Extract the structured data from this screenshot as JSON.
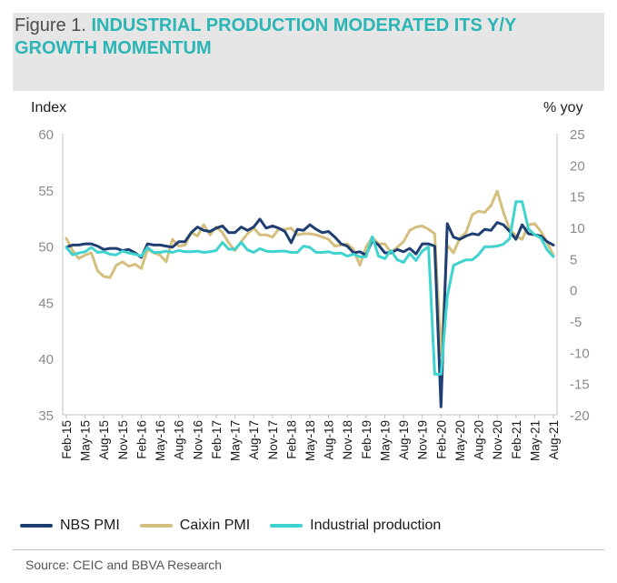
{
  "header": {
    "figure_label": "Figure 1. ",
    "title": "INDUSTRIAL PRODUCTION MODERATED ITS Y/Y GROWTH MOMENTUM"
  },
  "colors": {
    "header_bg": "#e6e6e6",
    "title_accent": "#2bb5b5",
    "nbs": "#1f3f73",
    "caixin": "#d4bf7f",
    "ip": "#3fd3cf"
  },
  "legend": {
    "nbs": "NBS PMI",
    "caixin": "Caixin PMI",
    "ip": "Industrial production"
  },
  "source": "Source: CEIC and BBVA Research",
  "chart_data": {
    "type": "line",
    "left_axis_title": "Index",
    "right_axis_title": "% yoy",
    "left_ylim": [
      35,
      60
    ],
    "left_ticks": [
      35,
      40,
      45,
      50,
      55,
      60
    ],
    "right_ylim": [
      -20,
      25
    ],
    "right_ticks": [
      -20,
      -15,
      -10,
      -5,
      0,
      5,
      10,
      15,
      20,
      25
    ],
    "x_tick_labels": [
      "Feb-15",
      "May-15",
      "Aug-15",
      "Nov-15",
      "Feb-16",
      "May-16",
      "Aug-16",
      "Nov-16",
      "Feb-17",
      "May-17",
      "Aug-17",
      "Nov-17",
      "Feb-18",
      "May-18",
      "Aug-18",
      "Nov-18",
      "Feb-19",
      "May-19",
      "Aug-19",
      "Nov-19",
      "Feb-20",
      "May-20",
      "Aug-20",
      "Nov-20",
      "Feb-21",
      "May-21",
      "Aug-21"
    ],
    "months": [
      "Feb-15",
      "Mar-15",
      "Apr-15",
      "May-15",
      "Jun-15",
      "Jul-15",
      "Aug-15",
      "Sep-15",
      "Oct-15",
      "Nov-15",
      "Dec-15",
      "Jan-16",
      "Feb-16",
      "Mar-16",
      "Apr-16",
      "May-16",
      "Jun-16",
      "Jul-16",
      "Aug-16",
      "Sep-16",
      "Oct-16",
      "Nov-16",
      "Dec-16",
      "Jan-17",
      "Feb-17",
      "Mar-17",
      "Apr-17",
      "May-17",
      "Jun-17",
      "Jul-17",
      "Aug-17",
      "Sep-17",
      "Oct-17",
      "Nov-17",
      "Dec-17",
      "Jan-18",
      "Feb-18",
      "Mar-18",
      "Apr-18",
      "May-18",
      "Jun-18",
      "Jul-18",
      "Aug-18",
      "Sep-18",
      "Oct-18",
      "Nov-18",
      "Dec-18",
      "Jan-19",
      "Feb-19",
      "Mar-19",
      "Apr-19",
      "May-19",
      "Jun-19",
      "Jul-19",
      "Aug-19",
      "Sep-19",
      "Oct-19",
      "Nov-19",
      "Dec-19",
      "Jan-20",
      "Feb-20",
      "Mar-20",
      "Apr-20",
      "May-20",
      "Jun-20",
      "Jul-20",
      "Aug-20",
      "Sep-20",
      "Oct-20",
      "Nov-20",
      "Dec-20",
      "Jan-21",
      "Feb-21",
      "Mar-21",
      "Apr-21",
      "May-21",
      "Jun-21",
      "Jul-21",
      "Aug-21"
    ],
    "series": [
      {
        "name": "NBS PMI",
        "axis": "left",
        "values": [
          49.9,
          50.1,
          50.1,
          50.2,
          50.2,
          50.0,
          49.7,
          49.8,
          49.8,
          49.6,
          49.7,
          49.4,
          49.0,
          50.2,
          50.1,
          50.1,
          50.0,
          49.9,
          50.4,
          50.4,
          51.2,
          51.7,
          51.4,
          51.3,
          51.6,
          51.8,
          51.2,
          51.2,
          51.7,
          51.4,
          51.7,
          52.4,
          51.6,
          51.8,
          51.6,
          51.3,
          50.3,
          51.5,
          51.4,
          51.9,
          51.5,
          51.2,
          51.3,
          50.8,
          50.2,
          50.0,
          49.4,
          49.5,
          49.2,
          50.5,
          50.1,
          49.4,
          49.4,
          49.7,
          49.5,
          49.8,
          49.3,
          50.2,
          50.2,
          50.0,
          35.7,
          52.0,
          50.8,
          50.6,
          50.9,
          51.1,
          51.0,
          51.5,
          51.4,
          52.1,
          51.9,
          51.3,
          50.6,
          51.9,
          51.1,
          51.0,
          50.9,
          50.4,
          50.1
        ]
      },
      {
        "name": "Caixin PMI",
        "axis": "left",
        "values": [
          50.7,
          49.6,
          48.9,
          49.2,
          49.4,
          47.8,
          47.3,
          47.2,
          48.3,
          48.6,
          48.2,
          48.4,
          48.0,
          49.7,
          49.4,
          49.2,
          48.6,
          50.6,
          50.0,
          50.1,
          51.2,
          50.9,
          51.9,
          51.0,
          51.7,
          51.2,
          50.3,
          49.6,
          50.4,
          51.1,
          51.6,
          51.0,
          51.0,
          50.8,
          51.5,
          51.5,
          51.6,
          51.0,
          51.1,
          51.1,
          51.0,
          50.8,
          50.6,
          50.0,
          50.1,
          50.2,
          49.7,
          48.3,
          49.9,
          50.8,
          50.2,
          50.2,
          49.4,
          49.9,
          50.4,
          51.4,
          51.7,
          51.8,
          51.5,
          51.1,
          40.3,
          50.1,
          49.4,
          50.7,
          51.2,
          52.8,
          53.1,
          53.0,
          53.6,
          54.9,
          53.0,
          51.5,
          50.9,
          50.6,
          51.9,
          52.0,
          51.3,
          50.3,
          49.2
        ]
      },
      {
        "name": "Industrial production",
        "axis": "right",
        "values": [
          6.8,
          5.6,
          5.9,
          6.1,
          6.8,
          6.0,
          6.1,
          5.7,
          5.6,
          6.2,
          5.9,
          5.7,
          5.4,
          6.8,
          6.0,
          6.0,
          6.2,
          6.0,
          6.3,
          6.1,
          6.1,
          6.2,
          6.0,
          6.1,
          6.3,
          7.6,
          6.5,
          6.5,
          7.6,
          6.4,
          6.0,
          6.6,
          6.2,
          6.1,
          6.2,
          6.2,
          6.0,
          6.0,
          7.0,
          6.8,
          6.0,
          6.0,
          6.1,
          5.8,
          5.9,
          5.4,
          5.7,
          5.3,
          5.3,
          8.5,
          5.4,
          5.0,
          6.3,
          4.8,
          4.4,
          5.8,
          4.7,
          6.2,
          6.9,
          -13.5,
          -13.5,
          -1.1,
          3.9,
          4.4,
          4.8,
          4.8,
          5.6,
          6.9,
          6.9,
          7.0,
          7.3,
          8.2,
          14.1,
          14.1,
          9.8,
          8.8,
          8.3,
          6.4,
          5.3
        ]
      }
    ]
  }
}
